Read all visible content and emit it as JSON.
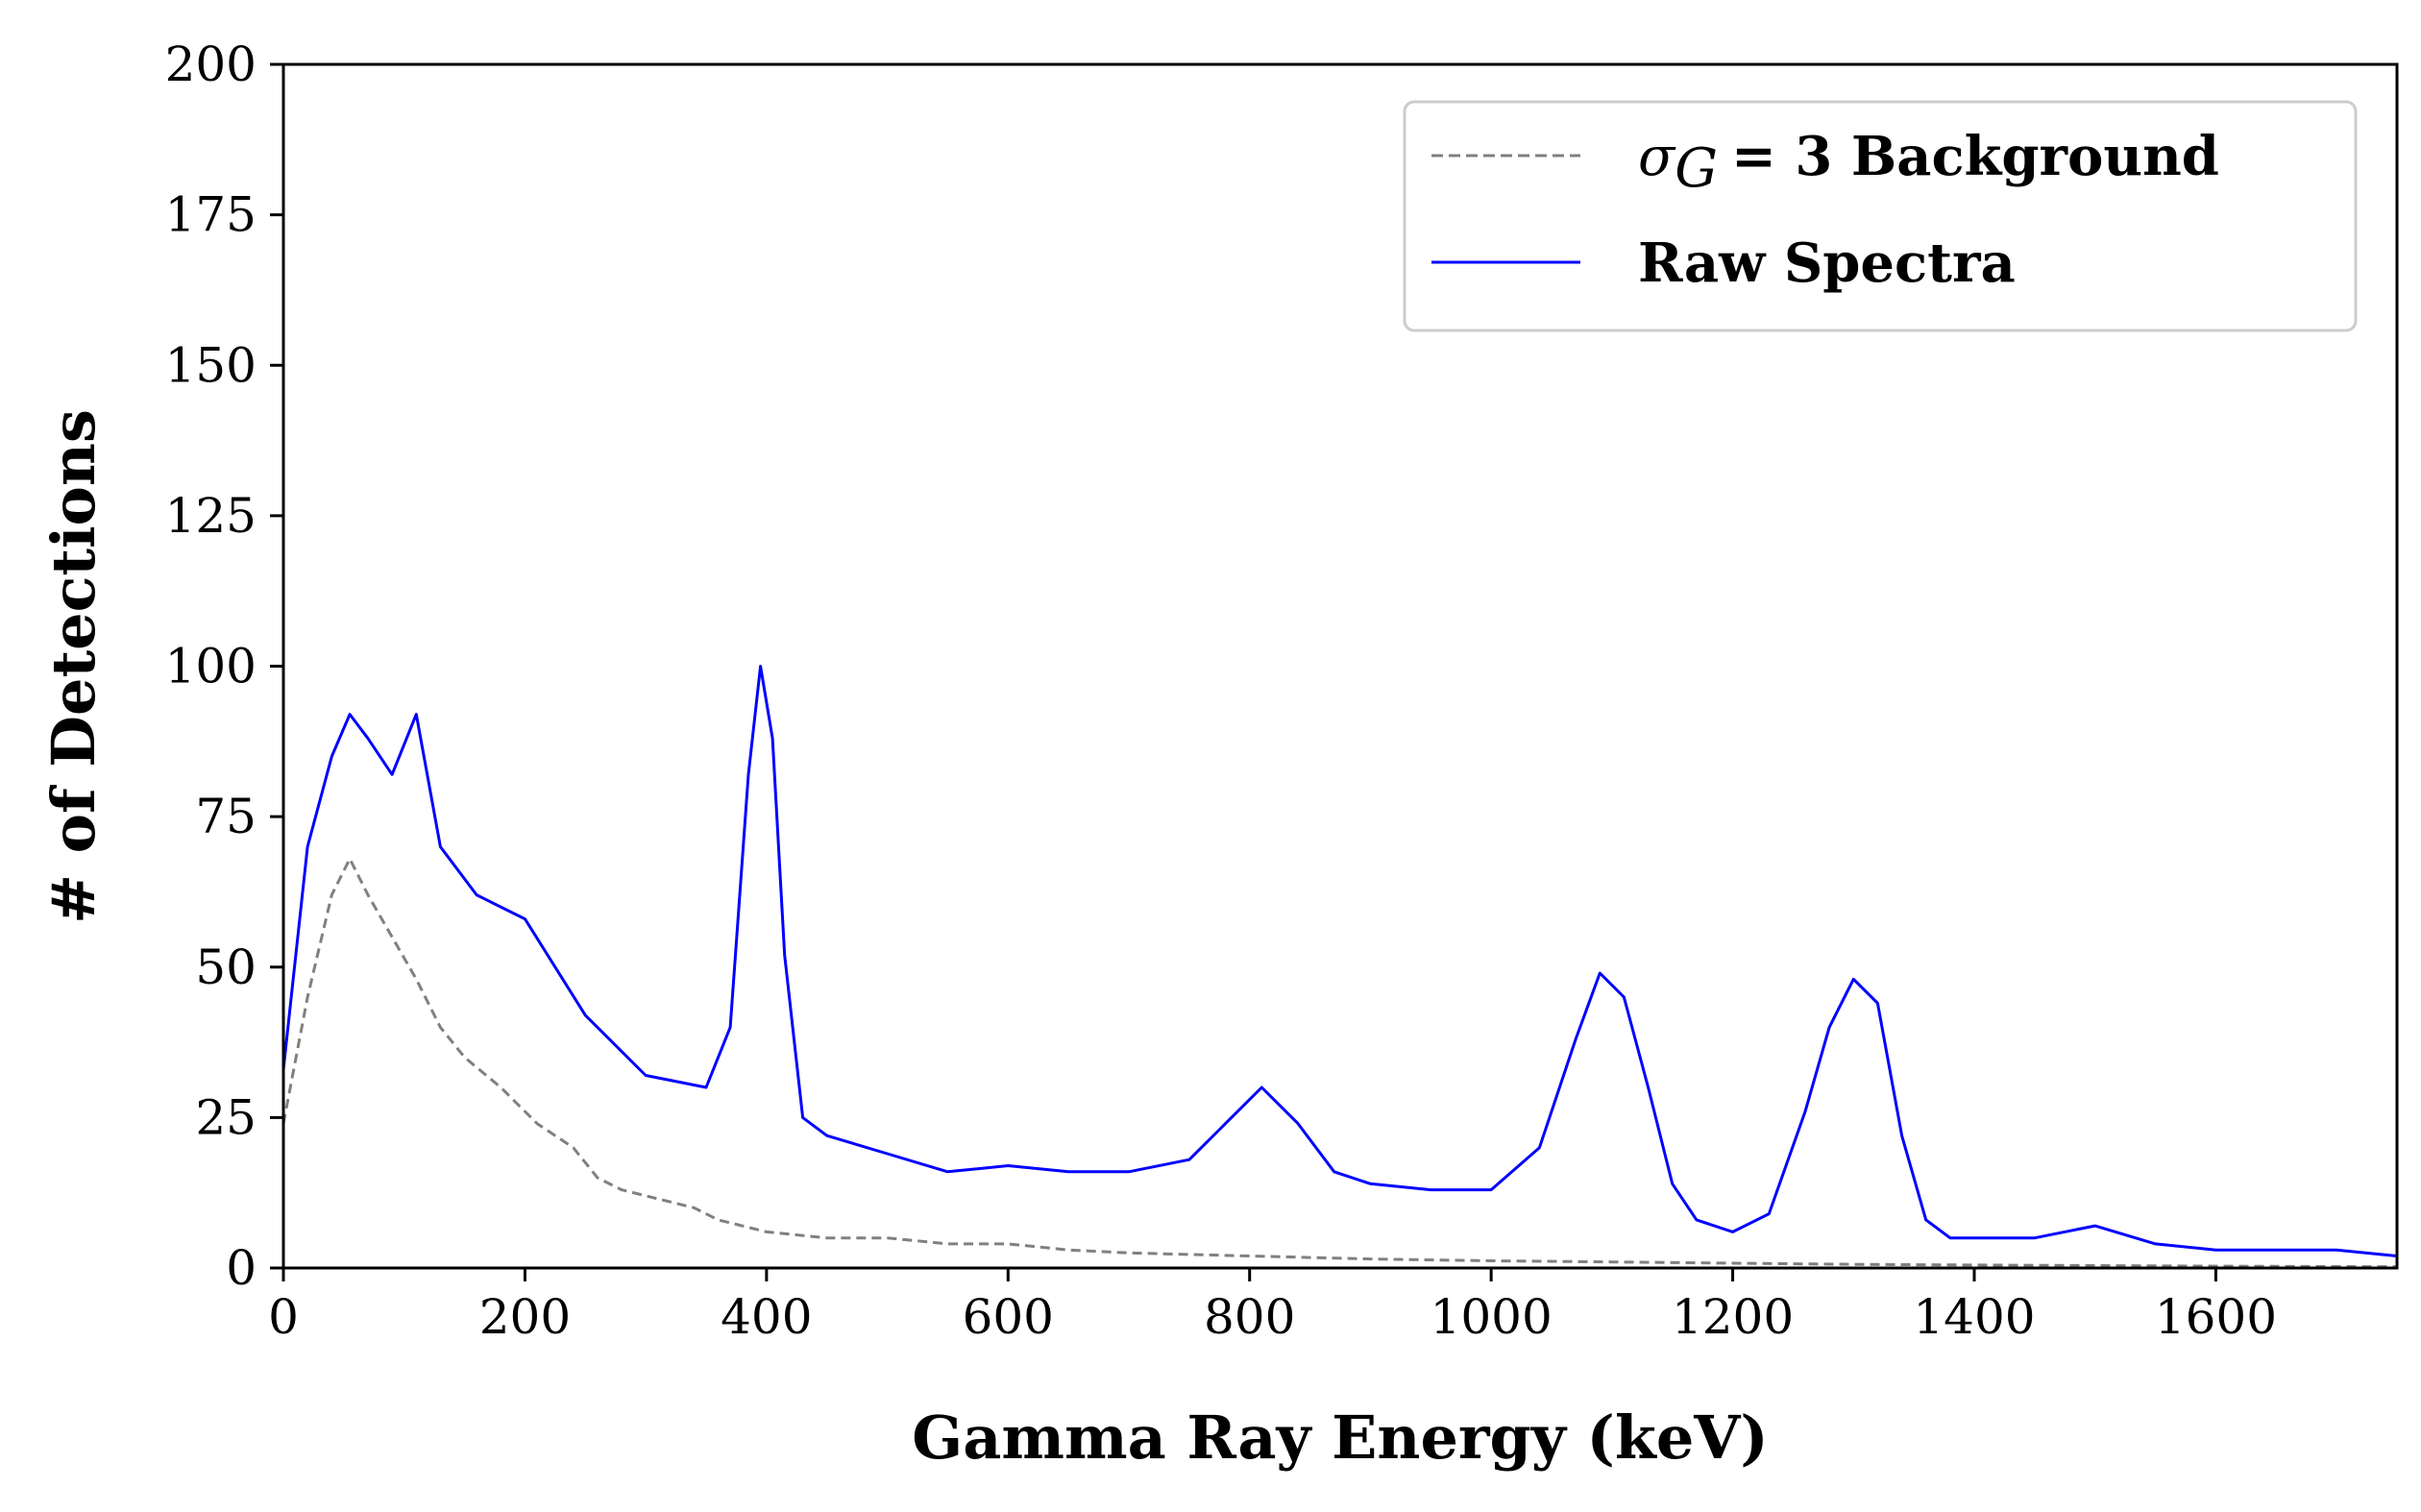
{
  "chart_data": {
    "type": "line",
    "xlabel": "Gamma Ray Energy (keV)",
    "ylabel": "# of Detections",
    "xlim": [
      0,
      1750
    ],
    "ylim": [
      0,
      200
    ],
    "xticks": [
      0,
      200,
      400,
      600,
      800,
      1000,
      1200,
      1400,
      1600
    ],
    "yticks": [
      0,
      25,
      50,
      75,
      100,
      125,
      150,
      175,
      200
    ],
    "grid": false,
    "legend_position": "top-right",
    "series": [
      {
        "name": "Raw Spectra",
        "color": "#0000ff",
        "style": "solid",
        "x": [
          0,
          20,
          40,
          55,
          70,
          90,
          110,
          130,
          160,
          200,
          250,
          300,
          350,
          370,
          385,
          395,
          405,
          415,
          430,
          450,
          500,
          550,
          600,
          650,
          700,
          750,
          780,
          810,
          840,
          870,
          900,
          950,
          1000,
          1040,
          1070,
          1090,
          1110,
          1130,
          1150,
          1170,
          1200,
          1230,
          1260,
          1280,
          1300,
          1320,
          1340,
          1360,
          1380,
          1400,
          1450,
          1500,
          1550,
          1600,
          1650,
          1700,
          1750
        ],
        "y": [
          33,
          70,
          85,
          92,
          88,
          82,
          92,
          70,
          62,
          58,
          42,
          32,
          30,
          40,
          82,
          100,
          88,
          52,
          25,
          22,
          19,
          16,
          17,
          16,
          16,
          18,
          24,
          30,
          24,
          16,
          14,
          13,
          13,
          20,
          38,
          49,
          45,
          30,
          14,
          8,
          6,
          9,
          26,
          40,
          48,
          44,
          22,
          8,
          5,
          5,
          5,
          7,
          4,
          3,
          3,
          3,
          2
        ]
      },
      {
        "name": "σ_G = 3 Background",
        "color": "#808080",
        "style": "dashed",
        "x": [
          0,
          20,
          40,
          55,
          70,
          90,
          110,
          130,
          150,
          180,
          210,
          240,
          260,
          280,
          300,
          320,
          340,
          360,
          400,
          450,
          500,
          550,
          600,
          650,
          700,
          800,
          900,
          1000,
          1100,
          1200,
          1300,
          1400,
          1500,
          1600,
          1750
        ],
        "y": [
          24,
          45,
          62,
          68,
          62,
          55,
          48,
          40,
          35,
          30,
          24,
          20,
          15,
          13,
          12,
          11,
          10,
          8,
          6,
          5,
          5,
          4,
          4,
          3,
          2.5,
          2,
          1.5,
          1.2,
          1,
          0.8,
          0.6,
          0.5,
          0.4,
          0.3,
          0.2
        ]
      }
    ]
  },
  "legend": {
    "background_symbol": "σ",
    "background_subscript": "G",
    "background_rest": "= 3 Background",
    "raw_label": "Raw Spectra"
  }
}
